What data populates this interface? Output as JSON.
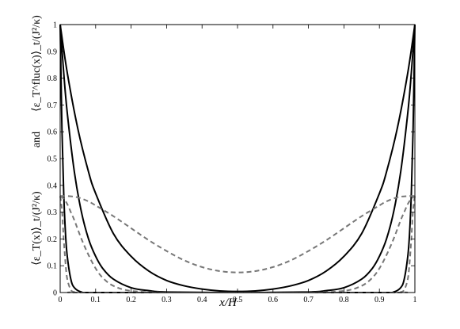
{
  "chart_data": {
    "type": "line",
    "xlabel": "x/H",
    "ylabel_top": "⟨ε_T^fluc(x)⟩_t/(J²/κ)",
    "ylabel_mid": "and",
    "ylabel_bottom": "⟨ε_T(x)⟩_t/(J²/κ)",
    "xlim": [
      0,
      1
    ],
    "ylim": [
      0,
      1
    ],
    "xticks": [
      0,
      0.1,
      0.2,
      0.3,
      0.4,
      0.5,
      0.6,
      0.7,
      0.8,
      0.9,
      1
    ],
    "xtick_labels": [
      "0",
      "0.1",
      "0.2",
      "0.3",
      "0.4",
      "0.5",
      "0.6",
      "0.7",
      "0.8",
      "0.9",
      "1"
    ],
    "yticks": [
      0,
      0.1,
      0.2,
      0.3,
      0.4,
      0.5,
      0.6,
      0.7,
      0.8,
      0.9,
      1
    ],
    "ytick_labels": [
      "0",
      "0.1",
      "0.2",
      "0.3",
      "0.4",
      "0.5",
      "0.6",
      "0.7",
      "0.8",
      "0.9",
      "1"
    ],
    "grid": false,
    "legend": "none",
    "series": [
      {
        "style": "solid",
        "color": "#000000",
        "x": [
          0,
          0.02,
          0.05,
          0.08,
          0.1,
          0.15,
          0.2,
          0.25,
          0.3,
          0.35,
          0.4,
          0.45,
          0.5,
          0.55,
          0.6,
          0.65,
          0.7,
          0.75,
          0.8,
          0.85,
          0.9,
          0.92,
          0.95,
          0.98,
          1
        ],
        "y": [
          1,
          0.82,
          0.61,
          0.45,
          0.37,
          0.22,
          0.135,
          0.08,
          0.045,
          0.025,
          0.013,
          0.006,
          0.004,
          0.006,
          0.013,
          0.025,
          0.045,
          0.08,
          0.135,
          0.22,
          0.37,
          0.45,
          0.61,
          0.82,
          1
        ]
      },
      {
        "style": "solid",
        "color": "#000000",
        "x": [
          0,
          0.01,
          0.02,
          0.04,
          0.06,
          0.08,
          0.1,
          0.12,
          0.15,
          0.2,
          0.25,
          0.3,
          0.5,
          0.7,
          0.75,
          0.8,
          0.85,
          0.88,
          0.9,
          0.92,
          0.94,
          0.96,
          0.98,
          0.99,
          1
        ],
        "y": [
          1,
          0.82,
          0.67,
          0.45,
          0.3,
          0.2,
          0.135,
          0.09,
          0.05,
          0.018,
          0.007,
          0.002,
          0,
          0.002,
          0.007,
          0.018,
          0.05,
          0.09,
          0.135,
          0.2,
          0.3,
          0.45,
          0.67,
          0.82,
          1
        ]
      },
      {
        "style": "solid",
        "color": "#000000",
        "x": [
          0,
          0.005,
          0.01,
          0.015,
          0.02,
          0.03,
          0.04,
          0.06,
          0.1,
          0.5,
          0.9,
          0.94,
          0.96,
          0.97,
          0.98,
          0.985,
          0.99,
          0.995,
          1
        ],
        "y": [
          1,
          0.61,
          0.37,
          0.22,
          0.135,
          0.05,
          0.018,
          0.002,
          0,
          0,
          0,
          0.002,
          0.018,
          0.05,
          0.135,
          0.22,
          0.37,
          0.61,
          1
        ]
      },
      {
        "style": "dashed",
        "color": "#777777",
        "x": [
          0,
          0.02,
          0.05,
          0.08,
          0.1,
          0.15,
          0.2,
          0.25,
          0.3,
          0.35,
          0.4,
          0.45,
          0.5,
          0.55,
          0.6,
          0.65,
          0.7,
          0.75,
          0.8,
          0.85,
          0.9,
          0.92,
          0.95,
          0.98,
          1
        ],
        "y": [
          0.36,
          0.36,
          0.355,
          0.34,
          0.325,
          0.285,
          0.24,
          0.195,
          0.155,
          0.12,
          0.095,
          0.08,
          0.075,
          0.08,
          0.095,
          0.12,
          0.155,
          0.195,
          0.24,
          0.285,
          0.325,
          0.34,
          0.355,
          0.36,
          0.36
        ]
      },
      {
        "style": "dashed",
        "color": "#777777",
        "x": [
          0,
          0.01,
          0.02,
          0.03,
          0.04,
          0.06,
          0.08,
          0.1,
          0.12,
          0.15,
          0.2,
          0.3,
          0.5,
          0.7,
          0.8,
          0.85,
          0.88,
          0.9,
          0.92,
          0.94,
          0.96,
          0.97,
          0.98,
          0.99,
          1
        ],
        "y": [
          0.36,
          0.35,
          0.33,
          0.3,
          0.27,
          0.2,
          0.14,
          0.09,
          0.055,
          0.025,
          0.006,
          0,
          0,
          0,
          0.006,
          0.025,
          0.055,
          0.09,
          0.14,
          0.2,
          0.27,
          0.3,
          0.33,
          0.35,
          0.36
        ]
      },
      {
        "style": "dashed",
        "color": "#777777",
        "x": [
          0,
          0.005,
          0.01,
          0.015,
          0.02,
          0.03,
          0.04,
          0.06,
          0.5,
          0.94,
          0.96,
          0.97,
          0.98,
          0.985,
          0.99,
          0.995,
          1
        ],
        "y": [
          0.36,
          0.31,
          0.2,
          0.11,
          0.05,
          0.01,
          0.002,
          0,
          0,
          0,
          0.002,
          0.01,
          0.05,
          0.11,
          0.2,
          0.31,
          0.36
        ]
      }
    ]
  }
}
